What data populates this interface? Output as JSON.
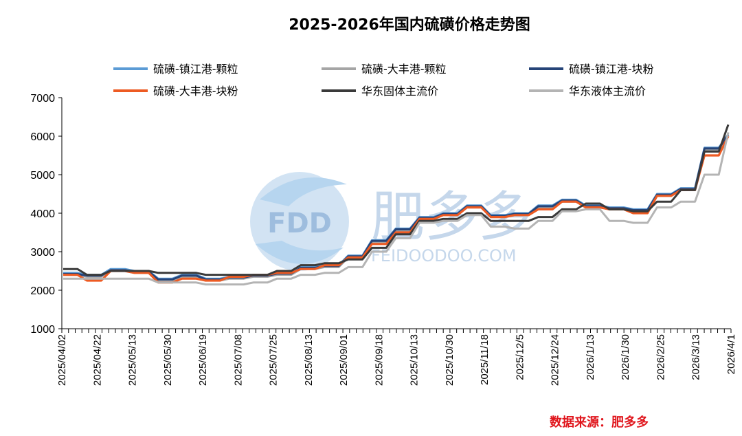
{
  "chart_data": {
    "type": "line",
    "title": "2025-2026年国内硫磺价格走势图",
    "ylim": [
      1000,
      7000
    ],
    "yticks": [
      1000,
      2000,
      3000,
      4000,
      5000,
      6000,
      7000
    ],
    "x_tick_labels": [
      "2025/04/02",
      "2025/04/22",
      "2025/05/13",
      "2025/05/30",
      "2025/06/19",
      "2025/07/08",
      "2025/07/25",
      "2025/08/13",
      "2025/09/01",
      "2025/09/18",
      "2025/10/13",
      "2025/10/30",
      "2025/11/18",
      "2025/12/5",
      "2025/12/24",
      "2026/1/13",
      "2026/1/30",
      "2026/2/25",
      "2026/3/13",
      "2026/4/1"
    ],
    "grid": false,
    "legend_position": "top",
    "series": [
      {
        "name": "硫磺-镇江港-颗粒",
        "color": "#5b9bd5",
        "values": [
          2450,
          2400,
          2550,
          2500,
          2300,
          2400,
          2300,
          2350,
          2400,
          2450,
          2600,
          2650,
          2900,
          3300,
          3600,
          3900,
          4000,
          4200,
          3950,
          4000,
          4200,
          4350,
          4200,
          4150,
          4100,
          4500,
          4650,
          5700,
          6050
        ]
      },
      {
        "name": "硫磺-大丰港-颗粒",
        "color": "#a5a5a5",
        "values": [
          2400,
          2350,
          2500,
          2450,
          2250,
          2350,
          2250,
          2300,
          2350,
          2400,
          2550,
          2600,
          2850,
          3250,
          3550,
          3850,
          3950,
          4150,
          3900,
          3950,
          4150,
          4300,
          4150,
          4100,
          4050,
          4450,
          4600,
          5650,
          6000
        ]
      },
      {
        "name": "硫磺-镇江港-块粉",
        "color": "#264478",
        "values": [
          2420,
          2380,
          2520,
          2480,
          2280,
          2380,
          2280,
          2330,
          2380,
          2430,
          2580,
          2630,
          2880,
          3280,
          3580,
          3880,
          3980,
          4180,
          3930,
          3980,
          4180,
          4330,
          4180,
          4130,
          4080,
          4480,
          4630,
          5680,
          6030
        ]
      },
      {
        "name": "硫磺-大丰港-块粉",
        "color": "#ed5b23",
        "values": [
          2400,
          2250,
          2500,
          2450,
          2200,
          2300,
          2250,
          2350,
          2400,
          2450,
          2550,
          2650,
          2850,
          3200,
          3500,
          3850,
          3950,
          4150,
          3900,
          3950,
          4100,
          4300,
          4150,
          4100,
          4000,
          4450,
          4600,
          5500,
          6000
        ]
      },
      {
        "name": "华东固体主流价",
        "color": "#3a3a3a",
        "values": [
          2550,
          2400,
          2500,
          2500,
          2450,
          2450,
          2400,
          2400,
          2400,
          2500,
          2650,
          2700,
          2800,
          3100,
          3450,
          3800,
          3850,
          4000,
          3800,
          3800,
          3900,
          4100,
          4250,
          4100,
          4050,
          4300,
          4600,
          5600,
          6300
        ]
      },
      {
        "name": "华东液体主流价",
        "color": "#b4b4b4",
        "values": [
          2300,
          2300,
          2300,
          2300,
          2200,
          2200,
          2150,
          2150,
          2200,
          2300,
          2400,
          2450,
          2600,
          3000,
          3350,
          3750,
          3800,
          3950,
          3650,
          3600,
          3800,
          4050,
          4100,
          3800,
          3750,
          4150,
          4300,
          5000,
          6100
        ]
      }
    ]
  },
  "watermark": {
    "logo_text": "FDD",
    "brand_cn": "肥多多",
    "brand_en": "FEIDOODOO.COM"
  },
  "source_note": "数据来源：肥多多"
}
